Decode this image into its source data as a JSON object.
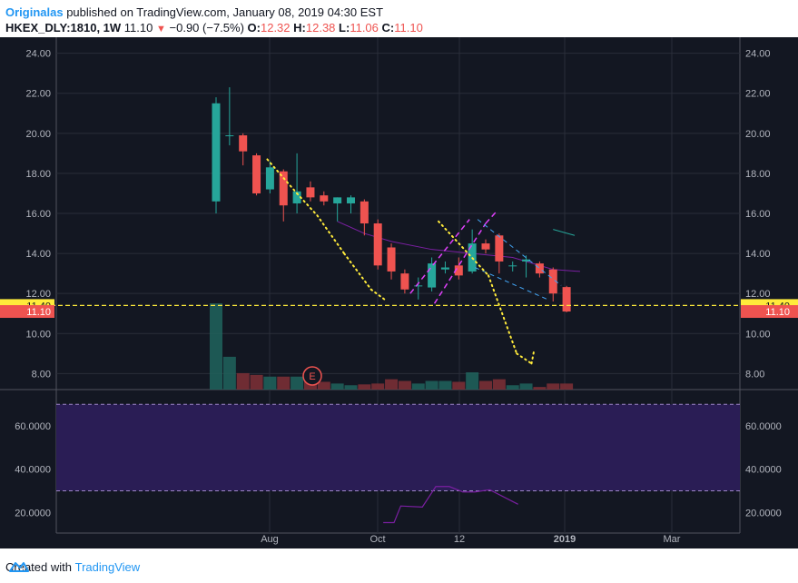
{
  "header": {
    "publisher": "Originalas",
    "published_text": "published on TradingView.com, January 08, 2019 04:30 EST",
    "symbol": "HKEX_DLY:1810, 1W",
    "last": "11.10",
    "change": "−0.90 (−7.5%)",
    "o_label": "O:",
    "o_value": "12.32",
    "h_label": "H:",
    "h_value": "12.38",
    "l_label": "L:",
    "l_value": "11.06",
    "c_label": "C:",
    "c_value": "11.10"
  },
  "footer": {
    "created_text": "Created with",
    "brand": "TradingView"
  },
  "colors": {
    "up": "#26a69a",
    "down": "#ef5350",
    "background": "#131722",
    "hline": "#ffeb3b",
    "pitchfork": "#e040fb",
    "channel": "#42a5f5",
    "sma": "#7b1fa2",
    "rsi_band": "#2a1d55"
  },
  "chart_data": {
    "type": "candlestick",
    "price_axis": {
      "ticks": [
        "24.00",
        "22.00",
        "20.00",
        "18.00",
        "16.00",
        "14.00",
        "12.00",
        "10.00",
        "8.00"
      ],
      "min": 7.2,
      "max": 24.8
    },
    "price_labels": [
      {
        "value": "11.40",
        "color": "#ffeb3b",
        "text_color": "#131722"
      },
      {
        "value": "11.10",
        "color": "#ef5350",
        "text_color": "#ffffff"
      }
    ],
    "time_axis": [
      "Aug",
      "Oct",
      "12",
      "2019",
      "Mar"
    ],
    "candles": [
      {
        "o": 16.6,
        "h": 21.8,
        "l": 16.0,
        "c": 21.5
      },
      {
        "o": 19.9,
        "h": 22.3,
        "l": 19.4,
        "c": 19.9
      },
      {
        "o": 19.9,
        "h": 20.0,
        "l": 18.4,
        "c": 19.1
      },
      {
        "o": 18.9,
        "h": 19.0,
        "l": 16.9,
        "c": 17.0
      },
      {
        "o": 17.2,
        "h": 18.6,
        "l": 17.0,
        "c": 18.3
      },
      {
        "o": 18.1,
        "h": 18.2,
        "l": 15.6,
        "c": 16.4
      },
      {
        "o": 16.5,
        "h": 19.0,
        "l": 16.0,
        "c": 17.1
      },
      {
        "o": 17.3,
        "h": 17.6,
        "l": 16.6,
        "c": 16.8
      },
      {
        "o": 16.9,
        "h": 17.1,
        "l": 16.4,
        "c": 16.6
      },
      {
        "o": 16.5,
        "h": 16.8,
        "l": 15.6,
        "c": 16.8
      },
      {
        "o": 16.5,
        "h": 16.9,
        "l": 16.0,
        "c": 16.8
      },
      {
        "o": 16.6,
        "h": 16.7,
        "l": 14.9,
        "c": 15.5
      },
      {
        "o": 15.5,
        "h": 15.7,
        "l": 13.2,
        "c": 13.4
      },
      {
        "o": 14.3,
        "h": 14.5,
        "l": 12.7,
        "c": 13.1
      },
      {
        "o": 13.0,
        "h": 13.2,
        "l": 12.0,
        "c": 12.2
      },
      {
        "o": 12.4,
        "h": 12.8,
        "l": 11.7,
        "c": 12.4
      },
      {
        "o": 12.3,
        "h": 13.8,
        "l": 12.1,
        "c": 13.5
      },
      {
        "o": 13.2,
        "h": 13.6,
        "l": 13.0,
        "c": 13.3
      },
      {
        "o": 13.4,
        "h": 13.8,
        "l": 12.7,
        "c": 12.9
      },
      {
        "o": 13.1,
        "h": 15.2,
        "l": 13.0,
        "c": 14.5
      },
      {
        "o": 14.5,
        "h": 14.7,
        "l": 14.0,
        "c": 14.2
      },
      {
        "o": 14.9,
        "h": 15.0,
        "l": 13.0,
        "c": 13.6
      },
      {
        "o": 13.4,
        "h": 13.6,
        "l": 13.1,
        "c": 13.4
      },
      {
        "o": 13.6,
        "h": 13.9,
        "l": 12.8,
        "c": 13.7
      },
      {
        "o": 13.5,
        "h": 13.6,
        "l": 12.8,
        "c": 13.0
      },
      {
        "o": 13.2,
        "h": 13.3,
        "l": 11.6,
        "c": 12.0
      },
      {
        "o": 12.32,
        "h": 12.38,
        "l": 11.06,
        "c": 11.1
      }
    ],
    "volume_relative": [
      1.0,
      0.38,
      0.19,
      0.17,
      0.15,
      0.15,
      0.15,
      0.19,
      0.09,
      0.07,
      0.05,
      0.06,
      0.07,
      0.12,
      0.1,
      0.07,
      0.1,
      0.1,
      0.09,
      0.2,
      0.1,
      0.12,
      0.05,
      0.07,
      0.03,
      0.07,
      0.07
    ],
    "earnings_marker": "E",
    "horizontal_line": 11.4,
    "sma": [
      [
        9,
        15.6
      ],
      [
        11,
        15.0
      ],
      [
        13,
        14.6
      ],
      [
        16,
        14.2
      ],
      [
        19,
        14.0
      ],
      [
        22,
        13.8
      ],
      [
        25,
        13.2
      ],
      [
        27,
        13.1
      ]
    ],
    "projection_dots": [
      [
        3.8,
        18.7
      ],
      [
        6.0,
        17.0
      ],
      [
        7.5,
        15.9
      ],
      [
        9.5,
        14.0
      ],
      [
        11.5,
        12.2
      ],
      [
        12.5,
        11.7
      ],
      [
        16.5,
        15.6
      ],
      [
        20.2,
        12.9
      ],
      [
        22.3,
        9.0
      ],
      [
        23.4,
        8.5
      ],
      [
        23.6,
        9.2
      ]
    ],
    "rsi": {
      "ticks": [
        "60.0000",
        "40.0000",
        "20.0000"
      ],
      "min": 13,
      "max": 76,
      "upper": 70,
      "lower": 30,
      "values": [
        [
          12.4,
          15.3
        ],
        [
          13.2,
          15.3
        ],
        [
          13.7,
          23.0
        ],
        [
          15.3,
          22.5
        ],
        [
          16.3,
          32.0
        ],
        [
          17.3,
          32.0
        ],
        [
          18.3,
          29.5
        ],
        [
          19.2,
          29.5
        ],
        [
          20.3,
          30.5
        ],
        [
          22.4,
          23.8
        ]
      ]
    }
  }
}
